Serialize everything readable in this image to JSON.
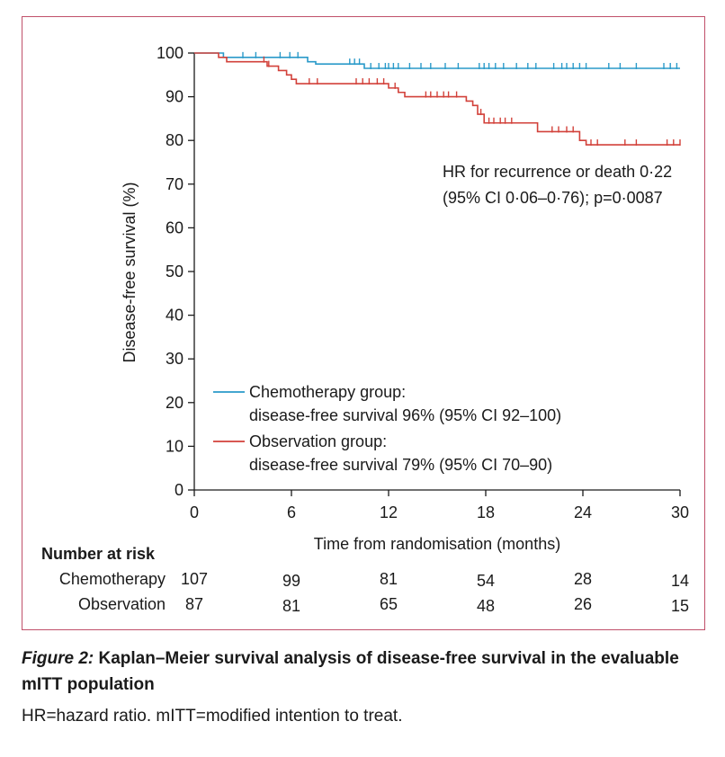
{
  "colors": {
    "chemo": "#2a9ac9",
    "observation": "#d2413a",
    "frame": "#c0506a",
    "axis": "#1a1a1a"
  },
  "chart_data": {
    "type": "line",
    "subtype": "kaplan-meier",
    "xlabel": "Time from randomisation (months)",
    "ylabel": "Disease-free survival (%)",
    "xlim": [
      0,
      30
    ],
    "ylim": [
      0,
      100
    ],
    "xticks": [
      0,
      6,
      12,
      18,
      24,
      30
    ],
    "yticks": [
      0,
      10,
      20,
      30,
      40,
      50,
      60,
      70,
      80,
      90,
      100
    ],
    "annotation_lines": [
      "HR for recurrence or death 0·22",
      "(95% CI 0·06–0·76); p=0·0087"
    ],
    "legend": [
      {
        "name": "Chemotherapy group:",
        "detail": "disease-free survival 96% (95% CI 92–100)"
      },
      {
        "name": "Observation group:",
        "detail": "disease-free survival 79% (95% CI 70–90)"
      }
    ],
    "series": [
      {
        "name": "Chemotherapy group",
        "steps": [
          [
            0,
            100
          ],
          [
            1.8,
            99.0
          ],
          [
            3.2,
            99.0
          ],
          [
            5.0,
            99.0
          ],
          [
            7.0,
            98.0
          ],
          [
            7.5,
            97.5
          ],
          [
            10.5,
            96.5
          ],
          [
            30,
            96.5
          ]
        ],
        "censored": [
          [
            3.0,
            99.0
          ],
          [
            3.8,
            99.0
          ],
          [
            5.3,
            99.0
          ],
          [
            5.9,
            99.0
          ],
          [
            6.4,
            99.0
          ],
          [
            9.6,
            97.5
          ],
          [
            9.9,
            97.5
          ],
          [
            10.2,
            97.5
          ],
          [
            10.9,
            96.5
          ],
          [
            11.4,
            96.5
          ],
          [
            11.8,
            96.5
          ],
          [
            12.0,
            96.5
          ],
          [
            12.3,
            96.5
          ],
          [
            12.6,
            96.5
          ],
          [
            13.3,
            96.5
          ],
          [
            14.0,
            96.5
          ],
          [
            14.6,
            96.5
          ],
          [
            15.5,
            96.5
          ],
          [
            16.3,
            96.5
          ],
          [
            17.6,
            96.5
          ],
          [
            17.9,
            96.5
          ],
          [
            18.2,
            96.5
          ],
          [
            18.6,
            96.5
          ],
          [
            19.1,
            96.5
          ],
          [
            19.9,
            96.5
          ],
          [
            20.6,
            96.5
          ],
          [
            21.1,
            96.5
          ],
          [
            22.2,
            96.5
          ],
          [
            22.7,
            96.5
          ],
          [
            23.0,
            96.5
          ],
          [
            23.4,
            96.5
          ],
          [
            23.8,
            96.5
          ],
          [
            24.2,
            96.5
          ],
          [
            25.6,
            96.5
          ],
          [
            26.3,
            96.5
          ],
          [
            27.3,
            96.5
          ],
          [
            29.0,
            96.5
          ],
          [
            29.4,
            96.5
          ],
          [
            29.8,
            96.5
          ]
        ]
      },
      {
        "name": "Observation group",
        "steps": [
          [
            0,
            100
          ],
          [
            1.5,
            99.0
          ],
          [
            2.0,
            98.0
          ],
          [
            4.5,
            97.0
          ],
          [
            5.2,
            96.0
          ],
          [
            5.7,
            95.0
          ],
          [
            6.0,
            94.0
          ],
          [
            6.3,
            93.0
          ],
          [
            12.0,
            92.0
          ],
          [
            12.6,
            91.0
          ],
          [
            13.0,
            90.0
          ],
          [
            16.8,
            89.0
          ],
          [
            17.2,
            88.0
          ],
          [
            17.5,
            86.0
          ],
          [
            17.9,
            84.0
          ],
          [
            21.2,
            82.0
          ],
          [
            23.8,
            80.0
          ],
          [
            24.2,
            79.0
          ],
          [
            30,
            79.0
          ]
        ],
        "censored": [
          [
            4.3,
            98.0
          ],
          [
            4.6,
            97.0
          ],
          [
            7.1,
            93.0
          ],
          [
            7.6,
            93.0
          ],
          [
            10.0,
            93.0
          ],
          [
            10.4,
            93.0
          ],
          [
            10.8,
            93.0
          ],
          [
            11.3,
            93.0
          ],
          [
            11.7,
            93.0
          ],
          [
            12.4,
            92.0
          ],
          [
            14.3,
            90.0
          ],
          [
            14.6,
            90.0
          ],
          [
            15.0,
            90.0
          ],
          [
            15.4,
            90.0
          ],
          [
            15.7,
            90.0
          ],
          [
            16.2,
            90.0
          ],
          [
            17.7,
            86.0
          ],
          [
            18.2,
            84.0
          ],
          [
            18.5,
            84.0
          ],
          [
            18.9,
            84.0
          ],
          [
            19.2,
            84.0
          ],
          [
            19.6,
            84.0
          ],
          [
            22.1,
            82.0
          ],
          [
            22.5,
            82.0
          ],
          [
            23.0,
            82.0
          ],
          [
            23.4,
            82.0
          ],
          [
            24.5,
            79.0
          ],
          [
            24.9,
            79.0
          ],
          [
            26.6,
            79.0
          ],
          [
            27.3,
            79.0
          ],
          [
            29.2,
            79.0
          ],
          [
            29.6,
            79.0
          ],
          [
            30.0,
            79.0
          ]
        ]
      }
    ]
  },
  "number_at_risk": {
    "title": "Number at risk",
    "rows": [
      {
        "label": "Chemotherapy",
        "values": [
          "107",
          "99",
          "81",
          "54",
          "28",
          "14"
        ]
      },
      {
        "label": "Observation",
        "values": [
          "87",
          "81",
          "65",
          "48",
          "26",
          "15"
        ]
      }
    ]
  },
  "caption": {
    "label": "Figure 2:",
    "title": " Kaplan–Meier survival analysis of disease-free survival in the evaluable mITT population",
    "note": "HR=hazard ratio. mITT=modified intention to treat."
  }
}
